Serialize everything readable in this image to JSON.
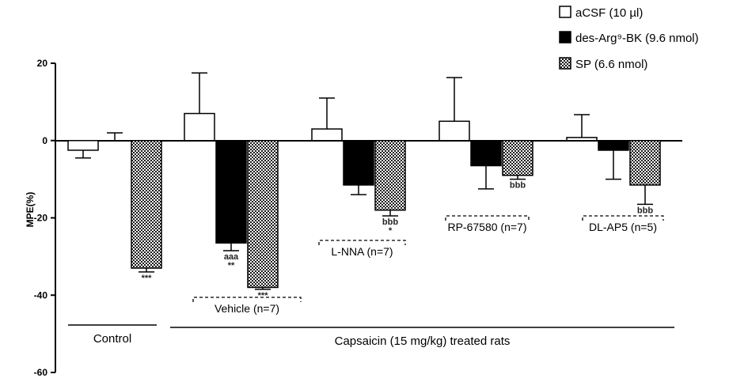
{
  "chart_data": {
    "type": "bar",
    "ylabel": "MPE(%)",
    "ylim": [
      -60,
      20
    ],
    "yticks": [
      20,
      0,
      -20,
      -40,
      -60
    ],
    "legend_position": "top-right",
    "series": [
      {
        "name": "aCSF (10 µl)",
        "values": [
          -2.5,
          7,
          3,
          5,
          0.8
        ],
        "errors": [
          2,
          10.5,
          8,
          11.3,
          5.9
        ],
        "fill": "white"
      },
      {
        "name": "des-Arg⁹-BK (9.6 nmol)",
        "values": [
          0,
          -26.5,
          -11.5,
          -6.5,
          -2.5
        ],
        "errors": [
          2,
          2,
          2.5,
          6,
          7.5
        ],
        "fill": "black"
      },
      {
        "name": "SP (6.6 nmol)",
        "values": [
          -33,
          -38,
          -18,
          -9,
          -11.5
        ],
        "errors": [
          1,
          0.5,
          1.5,
          1,
          5
        ],
        "fill": "checker"
      }
    ],
    "significance": [
      {
        "group": 0,
        "series": 2,
        "lines": [
          "***"
        ]
      },
      {
        "group": 1,
        "series": 1,
        "lines": [
          "aaa",
          "**"
        ]
      },
      {
        "group": 1,
        "series": 2,
        "lines": [
          "***"
        ]
      },
      {
        "group": 2,
        "series": 2,
        "lines": [
          "bbb",
          "*"
        ]
      },
      {
        "group": 3,
        "series": 2,
        "lines": [
          "bbb"
        ]
      },
      {
        "group": 4,
        "series": 2,
        "lines": [
          "bbb"
        ]
      }
    ],
    "sub_groups": [
      {
        "label": "Vehicle (n=7)",
        "group": 1
      },
      {
        "label": "L-NNA (n=7)",
        "group": 2
      },
      {
        "label": "RP-67580 (n=7)",
        "group": 3
      },
      {
        "label": "DL-AP5 (n=5)",
        "group": 4
      }
    ],
    "group_labels": [
      {
        "label": "Control",
        "from": 0,
        "to": 0
      },
      {
        "label": "Capsaicin (15 mg/kg) treated rats",
        "from": 1,
        "to": 4
      }
    ]
  }
}
